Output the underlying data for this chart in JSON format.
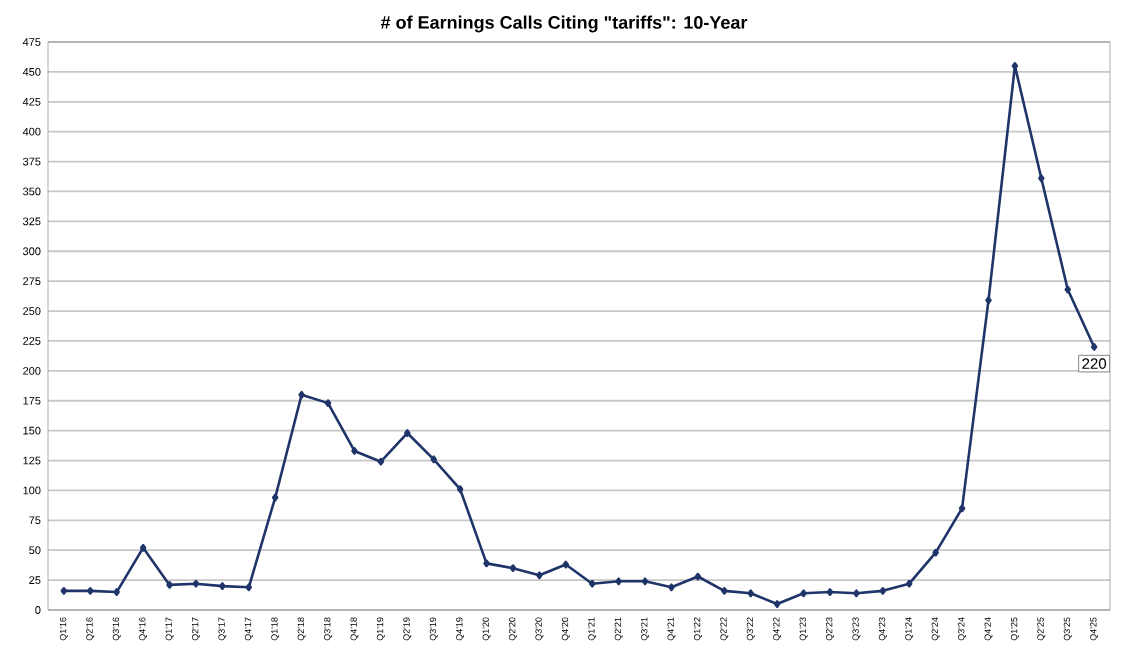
{
  "chart_data": {
    "type": "line",
    "title": "# of Earnings Calls Citing \"tariffs\": 10-Year",
    "categories": [
      "Q1'16",
      "Q2'16",
      "Q3'16",
      "Q4'16",
      "Q1'17",
      "Q2'17",
      "Q3'17",
      "Q4'17",
      "Q1'18",
      "Q2'18",
      "Q3'18",
      "Q4'18",
      "Q1'19",
      "Q2'19",
      "Q3'19",
      "Q4'19",
      "Q1'20",
      "Q2'20",
      "Q3'20",
      "Q4'20",
      "Q1'21",
      "Q2'21",
      "Q3'21",
      "Q4'21",
      "Q1'22",
      "Q2'22",
      "Q3'22",
      "Q4'22",
      "Q1'23",
      "Q2'23",
      "Q3'23",
      "Q4'23",
      "Q1'24",
      "Q2'24",
      "Q3'24",
      "Q4'24",
      "Q1'25",
      "Q2'25",
      "Q3'25",
      "Q4'25"
    ],
    "values": [
      16,
      16,
      15,
      52,
      21,
      22,
      20,
      19,
      94,
      180,
      173,
      133,
      124,
      148,
      126,
      101,
      39,
      35,
      29,
      38,
      22,
      24,
      24,
      19,
      28,
      16,
      14,
      5,
      14,
      15,
      14,
      16,
      22,
      48,
      85,
      259,
      455,
      361,
      268,
      220
    ],
    "value_labels": [
      null,
      null,
      null,
      null,
      null,
      null,
      null,
      null,
      null,
      null,
      null,
      null,
      null,
      null,
      null,
      null,
      null,
      null,
      null,
      null,
      null,
      null,
      null,
      null,
      null,
      null,
      null,
      null,
      null,
      null,
      null,
      null,
      null,
      null,
      null,
      null,
      null,
      null,
      null,
      "220"
    ],
    "color": "#1f3468",
    "marker": "diamond",
    "line_style": "solid",
    "grid": "y",
    "ylim": [
      0,
      475
    ],
    "yticks": [
      0,
      25,
      50,
      75,
      100,
      125,
      150,
      175,
      200,
      225,
      250,
      275,
      300,
      325,
      350,
      375,
      400,
      425,
      450,
      475
    ]
  }
}
